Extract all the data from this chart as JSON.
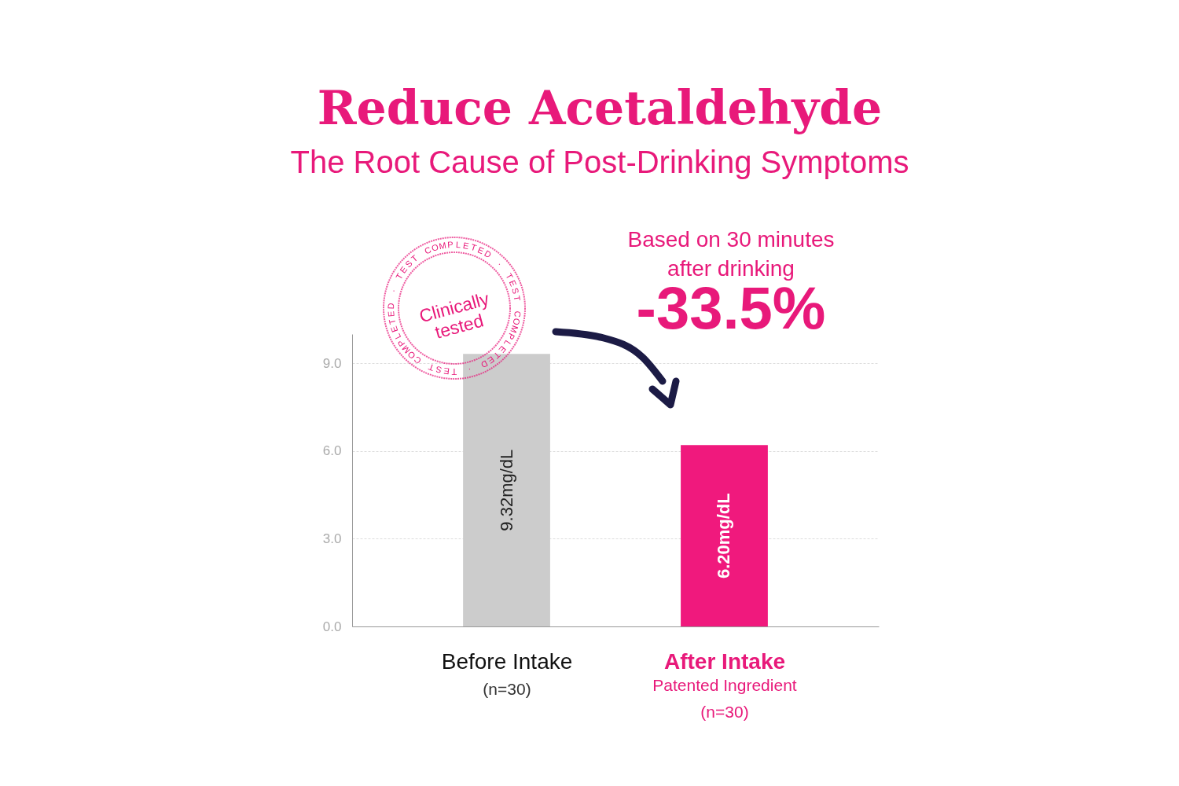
{
  "chart_data": {
    "type": "bar",
    "title": "Reduce Acetaldehyde",
    "subtitle": "The Root Cause of Post-Drinking Symptoms",
    "categories": [
      "Before Intake",
      "After Intake"
    ],
    "values": [
      9.32,
      6.2
    ],
    "colors": [
      "#cccccc",
      "#f0197d"
    ],
    "value_labels": [
      "9.32mg/dL",
      "6.20mg/dL"
    ],
    "ylim": [
      0,
      10
    ],
    "yticks": [
      {
        "value": 0,
        "label": "0.0"
      },
      {
        "value": 3,
        "label": "3.0"
      },
      {
        "value": 6,
        "label": "6.0"
      },
      {
        "value": 9,
        "label": "9.0"
      }
    ],
    "grid": "y",
    "annotations": [
      "Based on 30 minutes",
      "after drinking",
      "-33.5%",
      "(n=30)",
      "Patented Ingredient",
      "(n=30)",
      "Clinically\ntested",
      "TEST COMPLETED · TEST COMPLETED · TEST COMPLETED · "
    ]
  }
}
